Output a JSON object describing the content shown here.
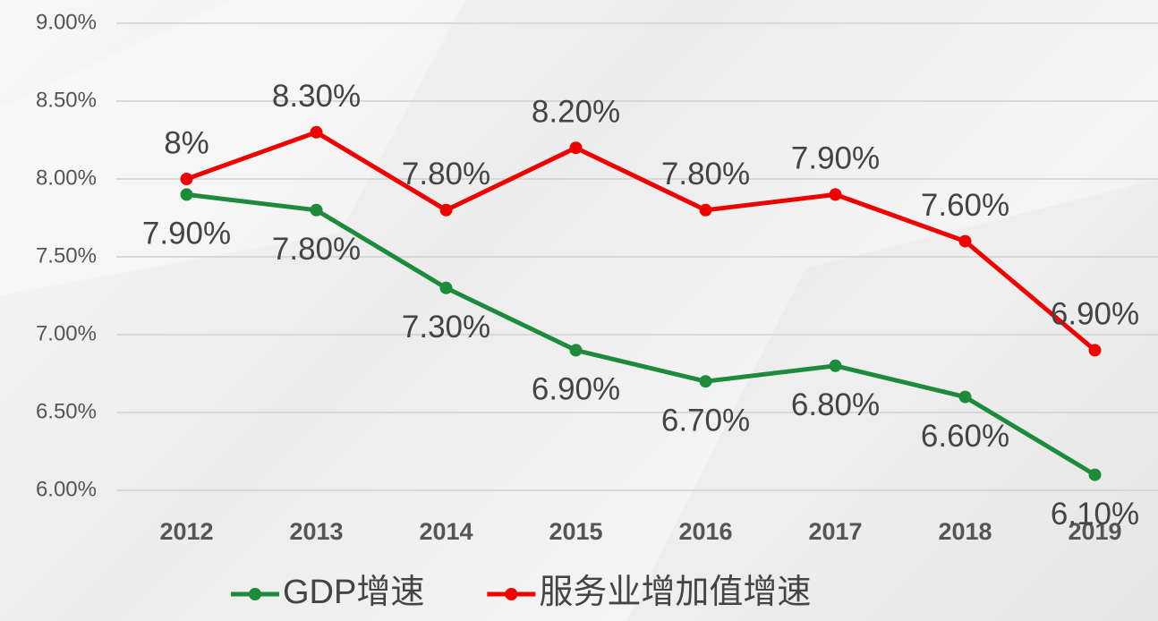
{
  "chart_data": {
    "type": "line",
    "categories": [
      "2012",
      "2013",
      "2014",
      "2015",
      "2016",
      "2017",
      "2018",
      "2019"
    ],
    "series": [
      {
        "name": "GDP增速",
        "color": "#1e8a3c",
        "values": [
          7.9,
          7.8,
          7.3,
          6.9,
          6.7,
          6.8,
          6.6,
          6.1
        ],
        "value_labels": [
          "7.90%",
          "7.80%",
          "7.30%",
          "6.90%",
          "6.70%",
          "6.80%",
          "6.60%",
          "6.10%"
        ]
      },
      {
        "name": "服务业增加值增速",
        "color": "#ee0000",
        "values": [
          8.0,
          8.3,
          7.8,
          8.2,
          7.8,
          7.9,
          7.6,
          6.9
        ],
        "value_labels": [
          "8%",
          "8.30%",
          "7.80%",
          "8.20%",
          "7.80%",
          "7.90%",
          "7.60%",
          "6.90%"
        ]
      }
    ],
    "ylim": [
      6,
      9
    ],
    "yticks": [
      {
        "value": 6,
        "label": "6.00%"
      },
      {
        "value": 6.5,
        "label": "6.50%"
      },
      {
        "value": 7,
        "label": "7.00%"
      },
      {
        "value": 7.5,
        "label": "7.50%"
      },
      {
        "value": 8,
        "label": "8.00%"
      },
      {
        "value": 8.5,
        "label": "8.50%"
      },
      {
        "value": 9,
        "label": "9.00%"
      }
    ],
    "grid": true,
    "legend": "bottom"
  }
}
